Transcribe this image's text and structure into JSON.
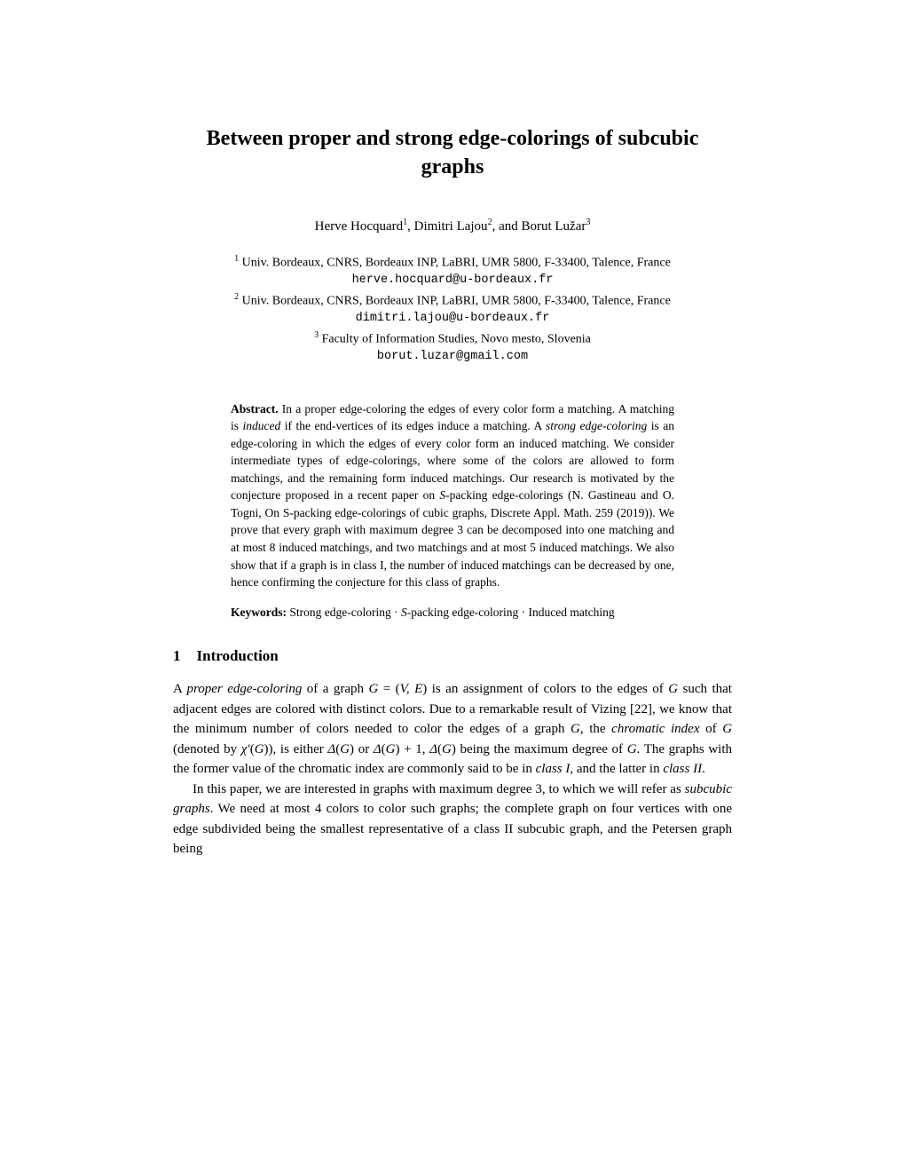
{
  "title": "Between proper and strong edge-colorings of subcubic graphs",
  "authors_html": "Herve Hocquard<span class=\"sup\">1</span>, Dimitri Lajou<span class=\"sup\">2</span>, and Borut Lužar<span class=\"sup\">3</span>",
  "affiliations": [
    {
      "sup": "1",
      "text": "Univ. Bordeaux, CNRS, Bordeaux INP, LaBRI, UMR 5800, F-33400, Talence, France",
      "email": "herve.hocquard@u-bordeaux.fr"
    },
    {
      "sup": "2",
      "text": "Univ. Bordeaux, CNRS, Bordeaux INP, LaBRI, UMR 5800, F-33400, Talence, France",
      "email": "dimitri.lajou@u-bordeaux.fr"
    },
    {
      "sup": "3",
      "text": "Faculty of Information Studies, Novo mesto, Slovenia",
      "email": "borut.luzar@gmail.com"
    }
  ],
  "abstract_heading": "Abstract.",
  "abstract_html": "In a proper edge-coloring the edges of every color form a matching. A matching is <span class=\"italic\">induced</span> if the end-vertices of its edges induce a matching. A <span class=\"italic\">strong edge-coloring</span> is an edge-coloring in which the edges of every color form an induced matching. We consider intermediate types of edge-colorings, where some of the colors are allowed to form matchings, and the remaining form induced matchings. Our research is motivated by the conjecture proposed in a recent paper on <span class=\"italic\">S</span>-packing edge-colorings (N. Gastineau and O. Togni, On S-packing edge-colorings of cubic graphs, Discrete Appl. Math. 259 (2019)). We prove that every graph with maximum degree 3 can be decomposed into one matching and at most 8 induced matchings, and two matchings and at most 5 induced matchings. We also show that if a graph is in class I, the number of induced matchings can be decreased by one, hence confirming the conjecture for this class of graphs.",
  "keywords_heading": "Keywords:",
  "keywords_html": "Strong edge-coloring · <span class=\"italic\">S</span>-packing edge-coloring · Induced matching",
  "section": {
    "num": "1",
    "title": "Introduction"
  },
  "para1_html": "A <span class=\"italic\">proper edge-coloring</span> of a graph <span class=\"italic\">G</span> = (<span class=\"italic\">V, E</span>) is an assignment of colors to the edges of <span class=\"italic\">G</span> such that adjacent edges are colored with distinct colors. Due to a remarkable result of Vizing [22], we know that the minimum number of colors needed to color the edges of a graph <span class=\"italic\">G</span>, the <span class=\"italic\">chromatic index</span> of <span class=\"italic\">G</span> (denoted by <span class=\"italic\">χ′</span>(<span class=\"italic\">G</span>)), is either <span class=\"italic\">Δ</span>(<span class=\"italic\">G</span>) or <span class=\"italic\">Δ</span>(<span class=\"italic\">G</span>)&nbsp;+&nbsp;1, <span class=\"italic\">Δ</span>(<span class=\"italic\">G</span>) being the maximum degree of <span class=\"italic\">G</span>. The graphs with the former value of the chromatic index are commonly said to be in <span class=\"italic\">class I</span>, and the latter in <span class=\"italic\">class II</span>.",
  "para2_html": "In this paper, we are interested in graphs with maximum degree 3, to which we will refer as <span class=\"italic\">subcubic graphs</span>. We need at most 4 colors to color such graphs; the complete graph on four vertices with one edge subdivided being the smallest representative of a class II subcubic graph, and the Petersen graph being"
}
